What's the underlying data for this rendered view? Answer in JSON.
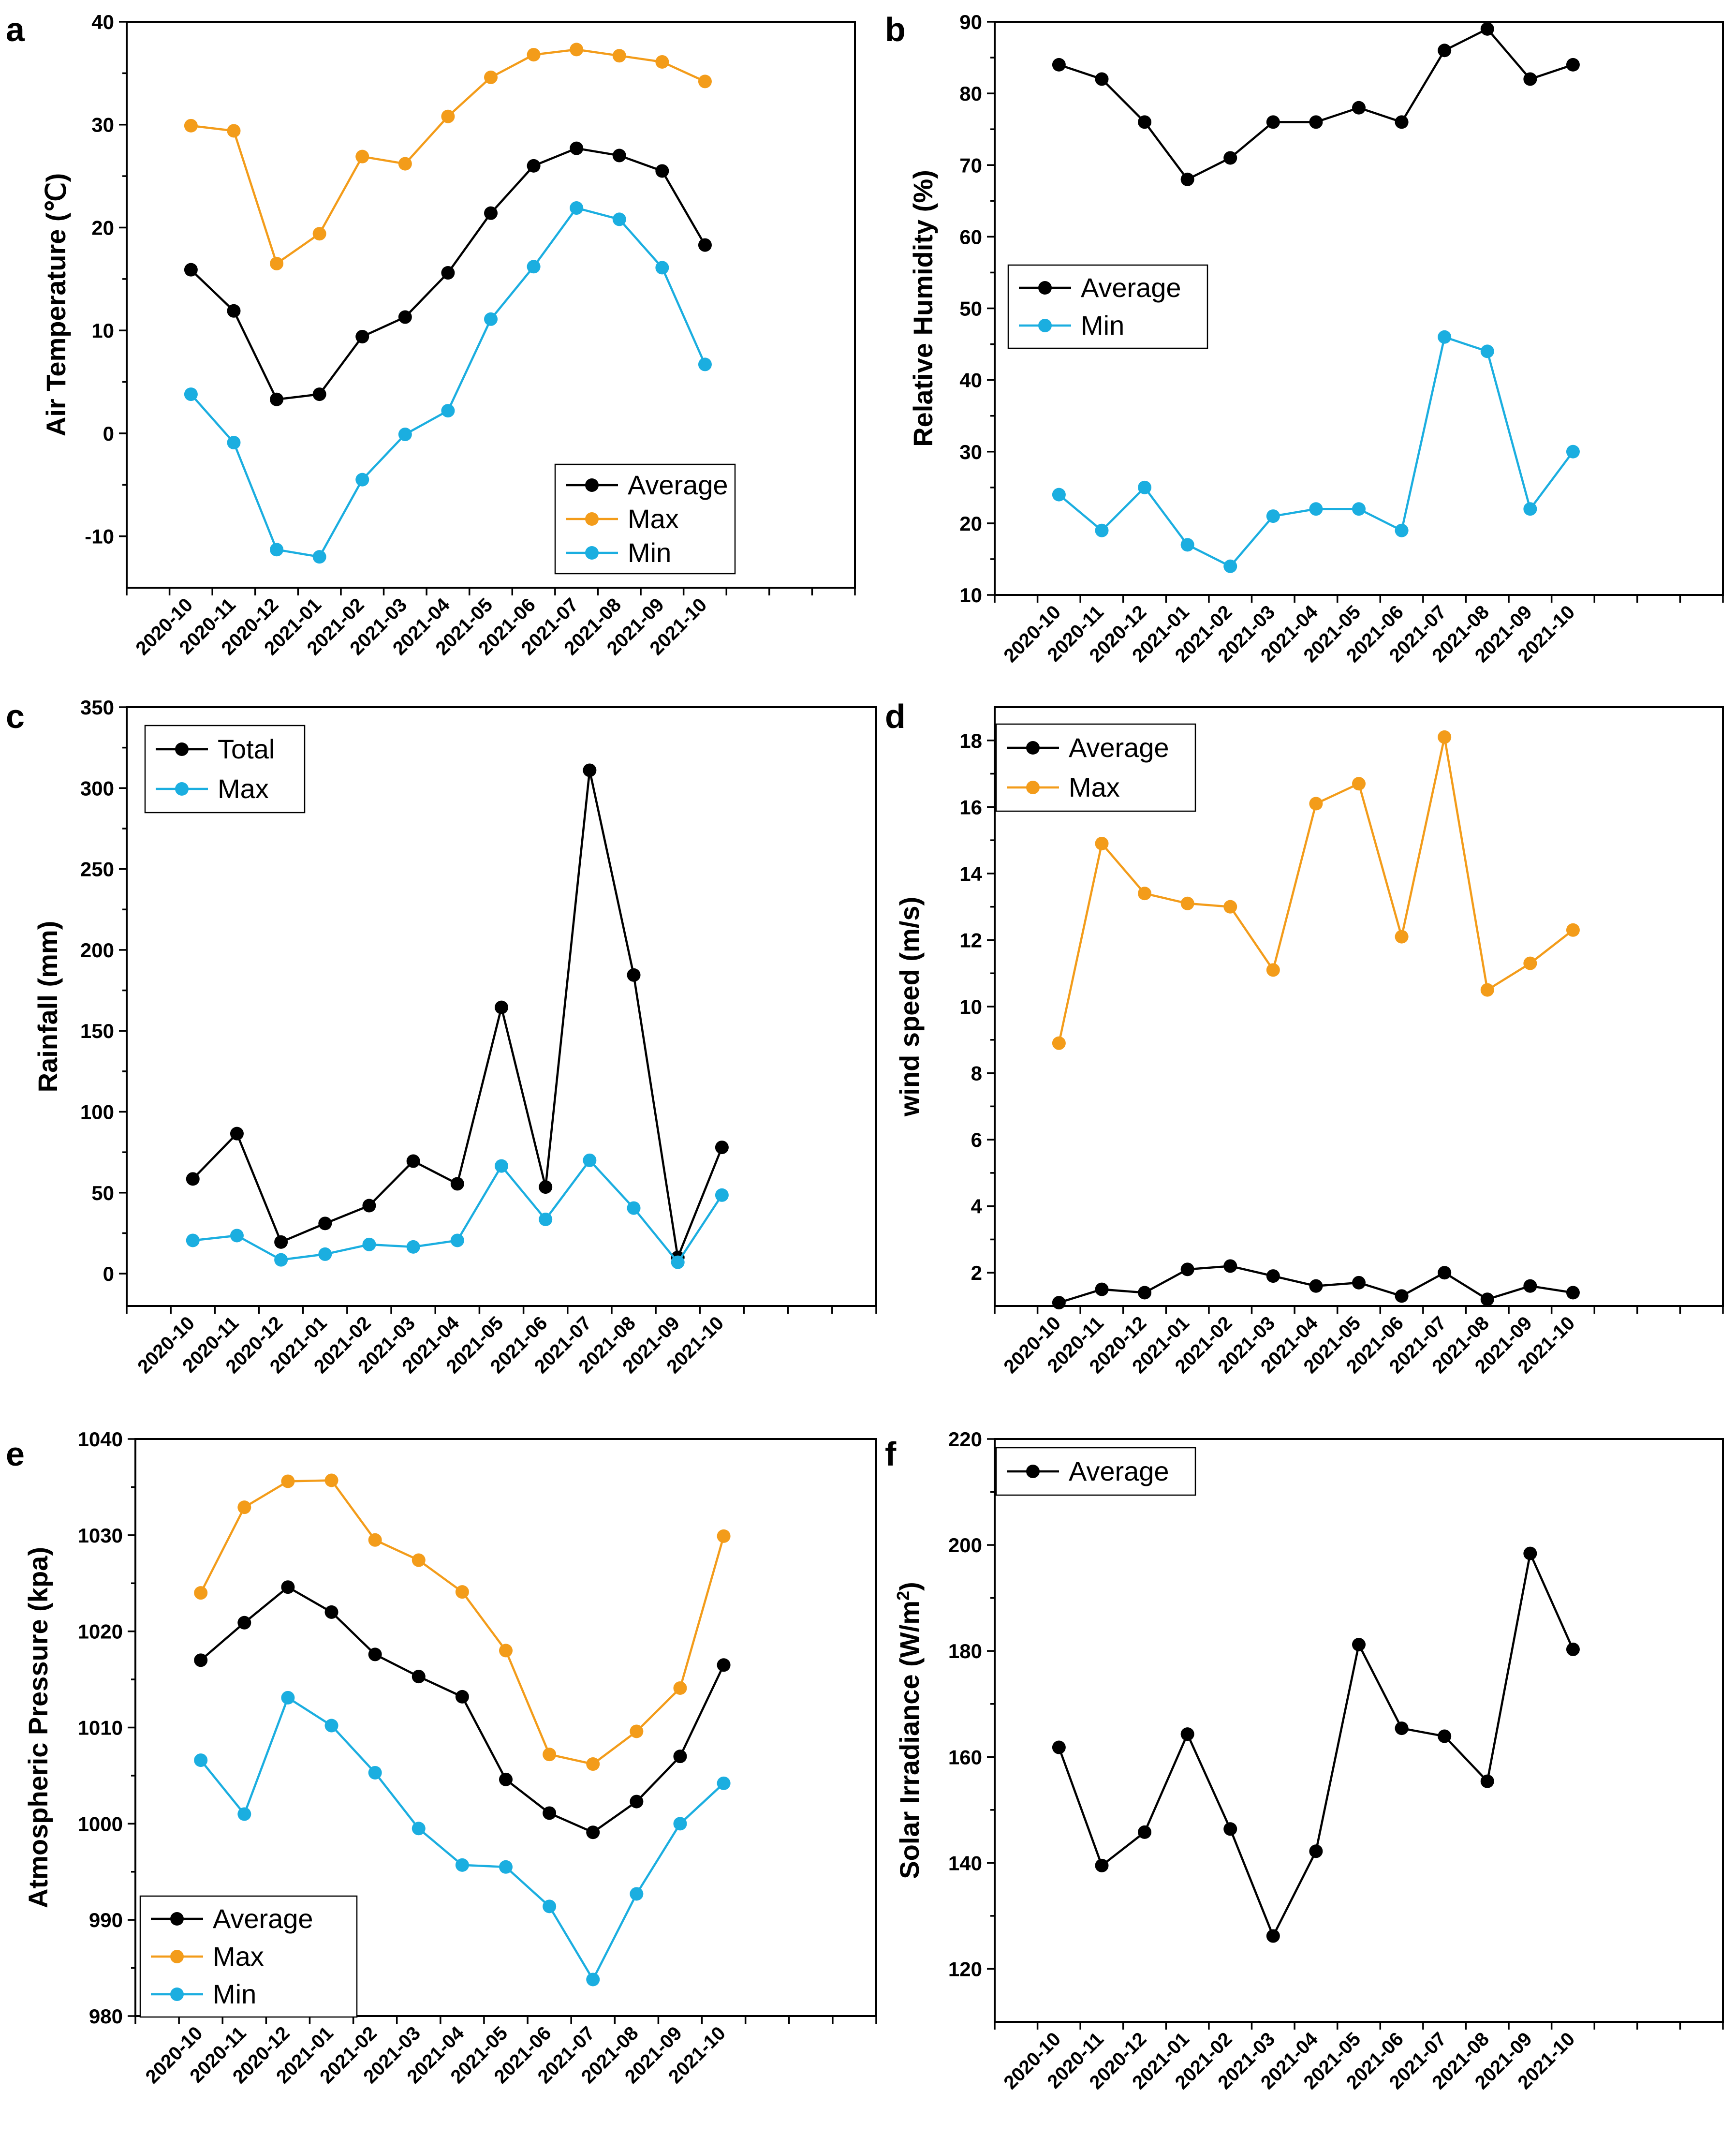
{
  "figure_panels": [
    "a",
    "b",
    "c",
    "d",
    "e",
    "f"
  ],
  "chart_data": [
    {
      "panel": "a",
      "type": "line",
      "title": "",
      "ylabel": "Air Temperature (℃)",
      "xlabel": "",
      "ylim": [
        -15,
        40
      ],
      "yticks": [
        -10,
        0,
        10,
        20,
        30,
        40
      ],
      "categories": [
        "2020-10",
        "2020-11",
        "2020-12",
        "2021-01",
        "2021-02",
        "2021-03",
        "2021-04",
        "2021-05",
        "2021-06",
        "2021-07",
        "2021-08",
        "2021-09",
        "2021-10"
      ],
      "legend_position": "bottom-right",
      "series": [
        {
          "name": "Average",
          "color": "#000000",
          "values": [
            15.9,
            11.9,
            3.3,
            3.8,
            9.4,
            11.3,
            15.6,
            21.4,
            26.0,
            27.7,
            27.0,
            25.5,
            18.3
          ]
        },
        {
          "name": "Max",
          "color": "#F39C1A",
          "values": [
            29.9,
            29.4,
            16.5,
            19.4,
            26.9,
            26.2,
            30.8,
            34.6,
            36.8,
            37.3,
            36.7,
            36.1,
            34.2
          ]
        },
        {
          "name": "Min",
          "color": "#1BAEE0",
          "values": [
            3.8,
            -0.9,
            -11.3,
            -12.0,
            -4.5,
            -0.1,
            2.2,
            11.1,
            16.2,
            21.9,
            20.8,
            16.1,
            6.7
          ]
        }
      ]
    },
    {
      "panel": "b",
      "type": "line",
      "title": "",
      "ylabel": "Relative Humidity (%)",
      "xlabel": "",
      "ylim": [
        10,
        90
      ],
      "yticks": [
        10,
        20,
        30,
        40,
        50,
        60,
        70,
        80,
        90
      ],
      "categories": [
        "2020-10",
        "2020-11",
        "2020-12",
        "2021-01",
        "2021-02",
        "2021-03",
        "2021-04",
        "2021-05",
        "2021-06",
        "2021-07",
        "2021-08",
        "2021-09",
        "2021-10"
      ],
      "legend_position": "middle-left",
      "series": [
        {
          "name": "Average",
          "color": "#000000",
          "values": [
            84,
            82,
            76,
            68,
            71,
            76,
            76,
            78,
            76,
            86,
            89,
            82,
            84
          ]
        },
        {
          "name": "Min",
          "color": "#1BAEE0",
          "values": [
            24,
            19,
            25,
            17,
            14,
            21,
            22,
            22,
            19,
            46,
            44,
            22,
            30
          ]
        }
      ]
    },
    {
      "panel": "c",
      "type": "line",
      "title": "",
      "ylabel": "Rainfall (mm)",
      "xlabel": "",
      "ylim": [
        -20,
        350
      ],
      "yticks": [
        0,
        50,
        100,
        150,
        200,
        250,
        300,
        350
      ],
      "categories": [
        "2020-10",
        "2020-11",
        "2020-12",
        "2021-01",
        "2021-02",
        "2021-03",
        "2021-04",
        "2021-05",
        "2021-06",
        "2021-07",
        "2021-08",
        "2021-09",
        "2021-10"
      ],
      "legend_position": "top-left",
      "series": [
        {
          "name": "Total",
          "color": "#000000",
          "values": [
            58.5,
            86.5,
            19.5,
            31,
            42,
            69.5,
            55.5,
            164.5,
            53.5,
            311,
            184.5,
            10,
            78
          ]
        },
        {
          "name": "Max",
          "color": "#1BAEE0",
          "values": [
            20.5,
            23.5,
            8.5,
            12,
            18,
            16.5,
            20.5,
            66.5,
            33.5,
            70,
            40.5,
            7,
            48.5
          ]
        }
      ]
    },
    {
      "panel": "d",
      "type": "line",
      "title": "",
      "ylabel": "wind speed (m/s)",
      "xlabel": "",
      "ylim": [
        1,
        19
      ],
      "yticks": [
        2,
        4,
        6,
        8,
        10,
        12,
        14,
        16,
        18
      ],
      "categories": [
        "2020-10",
        "2020-11",
        "2020-12",
        "2021-01",
        "2021-02",
        "2021-03",
        "2021-04",
        "2021-05",
        "2021-06",
        "2021-07",
        "2021-08",
        "2021-09",
        "2021-10"
      ],
      "legend_position": "top-left",
      "series": [
        {
          "name": "Average",
          "color": "#000000",
          "values": [
            1.1,
            1.5,
            1.4,
            2.1,
            2.2,
            1.9,
            1.6,
            1.7,
            1.3,
            2.0,
            1.2,
            1.6,
            1.4
          ]
        },
        {
          "name": "Max",
          "color": "#F39C1A",
          "values": [
            8.9,
            14.9,
            13.4,
            13.1,
            13.0,
            11.1,
            16.1,
            16.7,
            12.1,
            18.1,
            10.5,
            11.3,
            12.3
          ]
        }
      ]
    },
    {
      "panel": "e",
      "type": "line",
      "title": "",
      "ylabel": "Atmospheric Pressure (kpa)",
      "xlabel": "",
      "ylim": [
        980,
        1040
      ],
      "yticks": [
        980,
        990,
        1000,
        1010,
        1020,
        1030,
        1040
      ],
      "categories": [
        "2020-10",
        "2020-11",
        "2020-12",
        "2021-01",
        "2021-02",
        "2021-03",
        "2021-04",
        "2021-05",
        "2021-06",
        "2021-07",
        "2021-08",
        "2021-09",
        "2021-10"
      ],
      "legend_position": "bottom-left",
      "series": [
        {
          "name": "Average",
          "color": "#000000",
          "values": [
            1017.0,
            1020.9,
            1024.6,
            1022.0,
            1017.6,
            1015.3,
            1013.2,
            1004.6,
            1001.1,
            999.1,
            1002.3,
            1007.0,
            1016.5
          ]
        },
        {
          "name": "Max",
          "color": "#F39C1A",
          "values": [
            1024.0,
            1032.9,
            1035.6,
            1035.7,
            1029.5,
            1027.4,
            1024.1,
            1018.0,
            1007.2,
            1006.2,
            1009.6,
            1014.1,
            1029.9
          ]
        },
        {
          "name": "Min",
          "color": "#1BAEE0",
          "values": [
            1006.6,
            1001.0,
            1013.1,
            1010.2,
            1005.3,
            999.5,
            995.7,
            995.5,
            991.4,
            983.8,
            992.7,
            1000.0,
            1004.2
          ]
        }
      ]
    },
    {
      "panel": "f",
      "type": "line",
      "title": "",
      "ylabel": "Solar Irradiance (W/m²)",
      "xlabel": "",
      "ylim": [
        110,
        220
      ],
      "yticks": [
        120,
        140,
        160,
        180,
        200,
        220
      ],
      "categories": [
        "2020-10",
        "2020-11",
        "2020-12",
        "2021-01",
        "2021-02",
        "2021-03",
        "2021-04",
        "2021-05",
        "2021-06",
        "2021-07",
        "2021-08",
        "2021-09",
        "2021-10"
      ],
      "legend_position": "top-left",
      "series": [
        {
          "name": "Average",
          "color": "#000000",
          "values": [
            161.8,
            139.5,
            145.8,
            164.3,
            146.4,
            126.2,
            142.2,
            181.2,
            165.4,
            163.9,
            155.4,
            198.4,
            180.3
          ]
        }
      ]
    }
  ]
}
